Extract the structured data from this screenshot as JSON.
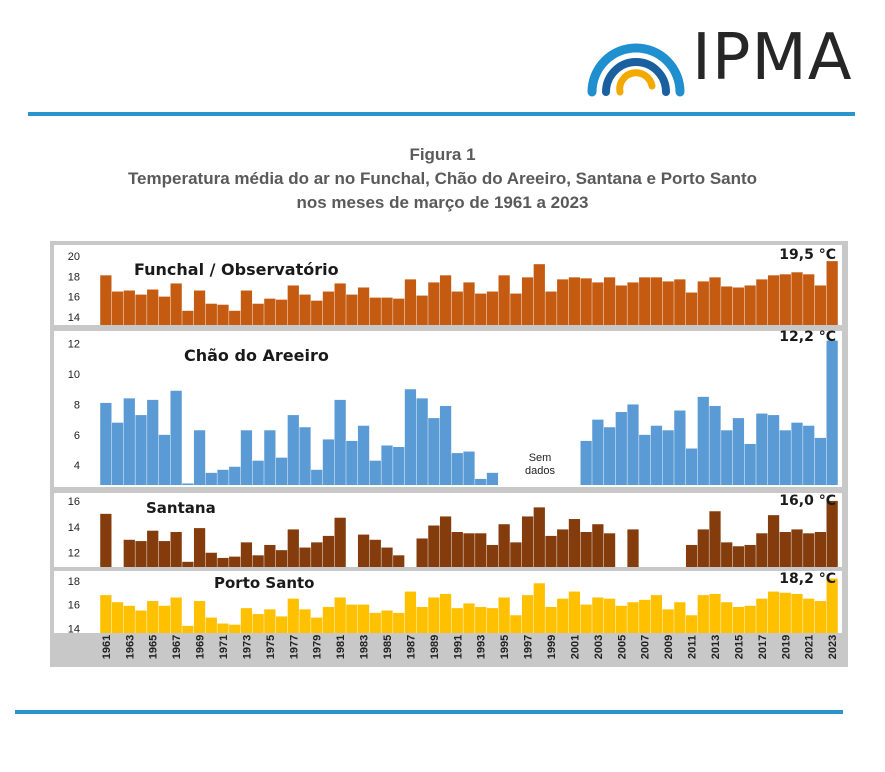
{
  "logo": {
    "text": "IPMA",
    "colors": [
      "#2a95cc",
      "#1a5f9e",
      "#f2a900"
    ]
  },
  "figure": {
    "label": "Figura 1",
    "title_line1": "Temperatura média do ar no Funchal, Chão do Areeiro, Santana e Porto Santo",
    "title_line2": "nos meses de março de 1961 a 2023"
  },
  "chart_data": [
    {
      "type": "bar",
      "title": "Funchal / Observatório",
      "max_label": "19,5 °C",
      "color": "#c55a11",
      "ylim": [
        13.2,
        20.5
      ],
      "yticks": [
        14,
        16,
        18,
        20
      ],
      "x": [
        1961,
        1962,
        1963,
        1964,
        1965,
        1966,
        1967,
        1968,
        1969,
        1970,
        1971,
        1972,
        1973,
        1974,
        1975,
        1976,
        1977,
        1978,
        1979,
        1980,
        1981,
        1982,
        1983,
        1984,
        1985,
        1986,
        1987,
        1988,
        1989,
        1990,
        1991,
        1992,
        1993,
        1994,
        1995,
        1996,
        1997,
        1998,
        1999,
        2000,
        2001,
        2002,
        2003,
        2004,
        2005,
        2006,
        2007,
        2008,
        2009,
        2010,
        2011,
        2012,
        2013,
        2014,
        2015,
        2016,
        2017,
        2018,
        2019,
        2020,
        2021,
        2022,
        2023
      ],
      "values": [
        18.1,
        16.5,
        16.6,
        16.2,
        16.7,
        16.0,
        17.3,
        14.6,
        16.6,
        15.3,
        15.2,
        14.6,
        16.6,
        15.3,
        15.8,
        15.7,
        17.1,
        16.2,
        15.6,
        16.5,
        17.3,
        16.2,
        16.9,
        15.9,
        15.9,
        15.8,
        17.7,
        16.1,
        17.4,
        18.1,
        16.5,
        17.4,
        16.3,
        16.5,
        18.1,
        16.3,
        17.9,
        19.2,
        16.5,
        17.7,
        17.9,
        17.8,
        17.4,
        17.9,
        17.1,
        17.4,
        17.9,
        17.9,
        17.5,
        17.7,
        16.4,
        17.5,
        17.9,
        17.0,
        16.9,
        17.1,
        17.7,
        18.1,
        18.2,
        18.4,
        18.2,
        17.1,
        19.5
      ]
    },
    {
      "type": "bar",
      "title": "Chão do Areeiro",
      "max_label": "12,2 °C",
      "color": "#5b9bd5",
      "ylim": [
        2.7,
        12.7
      ],
      "yticks": [
        4,
        6,
        8,
        10,
        12
      ],
      "annotation": "Sem dados",
      "x": [
        1961,
        1962,
        1963,
        1964,
        1965,
        1966,
        1967,
        1968,
        1969,
        1970,
        1971,
        1972,
        1973,
        1974,
        1975,
        1976,
        1977,
        1978,
        1979,
        1980,
        1981,
        1982,
        1983,
        1984,
        1985,
        1986,
        1987,
        1988,
        1989,
        1990,
        1991,
        1992,
        1993,
        1994,
        1995,
        1996,
        1997,
        1998,
        1999,
        2000,
        2001,
        2002,
        2003,
        2004,
        2005,
        2006,
        2007,
        2008,
        2009,
        2010,
        2011,
        2012,
        2013,
        2014,
        2015,
        2016,
        2017,
        2018,
        2019,
        2020,
        2021,
        2022,
        2023
      ],
      "values": [
        8.1,
        6.8,
        8.4,
        7.3,
        8.3,
        6.0,
        8.9,
        2.8,
        6.3,
        3.5,
        3.7,
        3.9,
        6.3,
        4.3,
        6.3,
        4.5,
        7.3,
        6.5,
        3.7,
        5.7,
        8.3,
        5.6,
        6.6,
        4.3,
        5.3,
        5.2,
        9.0,
        8.4,
        7.1,
        7.9,
        4.8,
        4.9,
        3.1,
        3.5,
        null,
        null,
        null,
        null,
        null,
        null,
        null,
        5.6,
        7.0,
        6.5,
        7.5,
        8.0,
        6.0,
        6.6,
        6.3,
        7.6,
        5.1,
        8.5,
        7.9,
        6.3,
        7.1,
        5.4,
        7.4,
        7.3,
        6.3,
        6.8,
        6.6,
        5.8,
        12.2
      ]
    },
    {
      "type": "bar",
      "title": "Santana",
      "max_label": "16,0 °C",
      "color": "#843c0c",
      "ylim": [
        10.9,
        16.3
      ],
      "yticks": [
        12,
        14,
        16
      ],
      "x": [
        1961,
        1962,
        1963,
        1964,
        1965,
        1966,
        1967,
        1968,
        1969,
        1970,
        1971,
        1972,
        1973,
        1974,
        1975,
        1976,
        1977,
        1978,
        1979,
        1980,
        1981,
        1982,
        1983,
        1984,
        1985,
        1986,
        1987,
        1988,
        1989,
        1990,
        1991,
        1992,
        1993,
        1994,
        1995,
        1996,
        1997,
        1998,
        1999,
        2000,
        2001,
        2002,
        2003,
        2004,
        2005,
        2006,
        2007,
        2008,
        2009,
        2010,
        2011,
        2012,
        2013,
        2014,
        2015,
        2016,
        2017,
        2018,
        2019,
        2020,
        2021,
        2022,
        2023
      ],
      "values": [
        15.0,
        null,
        13.0,
        12.9,
        13.7,
        12.9,
        13.6,
        11.3,
        13.9,
        12.0,
        11.6,
        11.7,
        12.8,
        11.8,
        12.6,
        12.2,
        13.8,
        12.4,
        12.8,
        13.3,
        14.7,
        null,
        13.4,
        13.0,
        12.4,
        11.8,
        null,
        13.1,
        14.1,
        14.8,
        13.6,
        13.5,
        13.5,
        12.6,
        14.2,
        12.8,
        14.8,
        15.5,
        13.3,
        13.8,
        14.6,
        13.6,
        14.2,
        13.5,
        null,
        13.8,
        null,
        null,
        null,
        null,
        12.6,
        13.8,
        15.2,
        12.8,
        12.5,
        12.6,
        13.5,
        14.9,
        13.6,
        13.8,
        13.5,
        13.6,
        16.0
      ]
    },
    {
      "type": "bar",
      "title": "Porto Santo",
      "max_label": "18,2 °C",
      "color": "#ffc000",
      "ylim": [
        13.6,
        18.5
      ],
      "yticks": [
        14,
        16,
        18
      ],
      "x": [
        1961,
        1962,
        1963,
        1964,
        1965,
        1966,
        1967,
        1968,
        1969,
        1970,
        1971,
        1972,
        1973,
        1974,
        1975,
        1976,
        1977,
        1978,
        1979,
        1980,
        1981,
        1982,
        1983,
        1984,
        1985,
        1986,
        1987,
        1988,
        1989,
        1990,
        1991,
        1992,
        1993,
        1994,
        1995,
        1996,
        1997,
        1998,
        1999,
        2000,
        2001,
        2002,
        2003,
        2004,
        2005,
        2006,
        2007,
        2008,
        2009,
        2010,
        2011,
        2012,
        2013,
        2014,
        2015,
        2016,
        2017,
        2018,
        2019,
        2020,
        2021,
        2022,
        2023
      ],
      "values": [
        16.8,
        16.2,
        15.9,
        15.5,
        16.3,
        15.9,
        16.6,
        14.2,
        16.3,
        14.9,
        14.4,
        14.3,
        15.7,
        15.2,
        15.6,
        15.0,
        16.5,
        15.6,
        14.9,
        15.8,
        16.6,
        16.0,
        16.0,
        15.3,
        15.5,
        15.3,
        17.1,
        15.8,
        16.6,
        16.9,
        15.7,
        16.1,
        15.8,
        15.7,
        16.6,
        15.1,
        16.8,
        17.8,
        15.8,
        16.5,
        17.1,
        16.0,
        16.6,
        16.5,
        15.9,
        16.2,
        16.4,
        16.8,
        15.6,
        16.2,
        15.1,
        16.8,
        16.9,
        16.2,
        15.8,
        15.9,
        16.5,
        17.1,
        17.0,
        16.9,
        16.5,
        16.3,
        18.2
      ]
    }
  ],
  "x_axis": {
    "tick_labels": [
      "1961",
      "1963",
      "1965",
      "1967",
      "1969",
      "1971",
      "1973",
      "1975",
      "1977",
      "1979",
      "1981",
      "1983",
      "1985",
      "1987",
      "1989",
      "1991",
      "1993",
      "1995",
      "1997",
      "1999",
      "2001",
      "2003",
      "2005",
      "2007",
      "2009",
      "2011",
      "2013",
      "2015",
      "2017",
      "2019",
      "2021",
      "2023"
    ]
  }
}
